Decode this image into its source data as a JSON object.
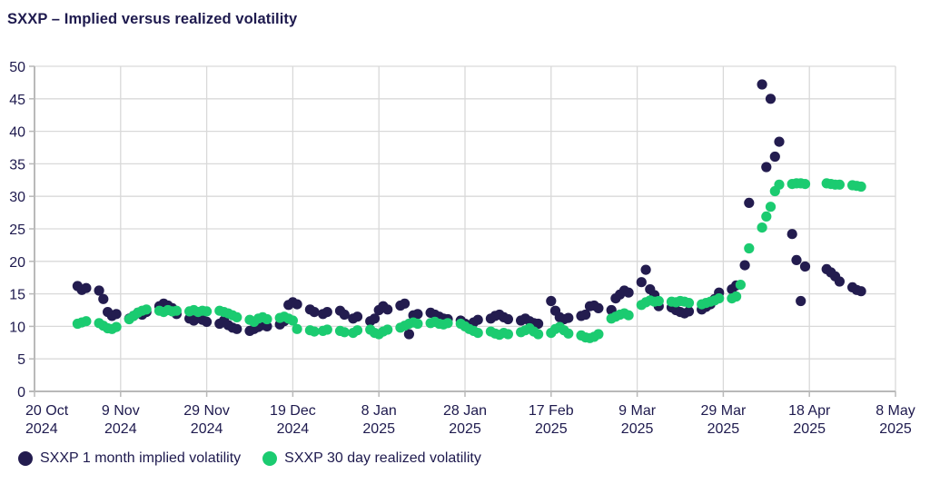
{
  "title": "SXXP – Implied versus realized volatility",
  "colors": {
    "implied": "#231c4f",
    "realized": "#1bcb70",
    "grid": "#d9d9d9",
    "axis": "#b9b9b9",
    "text": "#1e1a4e",
    "background": "#ffffff"
  },
  "legend": [
    {
      "label": "SXXP 1 month implied volatility",
      "series": "implied"
    },
    {
      "label": "SXXP 30 day realized volatility",
      "series": "realized"
    }
  ],
  "chart_data": {
    "type": "scatter",
    "title": "SXXP – Implied versus realized volatility",
    "grid": true,
    "legend_position": "bottom-left",
    "x_axis": {
      "start_date": "2024-10-20",
      "span_days": 200,
      "tick_interval_days": 20,
      "tick_labels": [
        [
          "20 Oct",
          "2024"
        ],
        [
          "9 Nov",
          "2024"
        ],
        [
          "29 Nov",
          "2024"
        ],
        [
          "19 Dec",
          "2024"
        ],
        [
          "8 Jan",
          "2025"
        ],
        [
          "28 Jan",
          "2025"
        ],
        [
          "17 Feb",
          "2025"
        ],
        [
          "9 Mar",
          "2025"
        ],
        [
          "29 Mar",
          "2025"
        ],
        [
          "18 Apr",
          "2025"
        ],
        [
          "8 May",
          "2025"
        ]
      ]
    },
    "y_axis": {
      "min": 0,
      "max": 50,
      "step": 5,
      "tick_labels": [
        "0",
        "5",
        "10",
        "15",
        "20",
        "25",
        "30",
        "35",
        "40",
        "45",
        "50"
      ]
    },
    "series": [
      {
        "name": "SXXP 1 month implied volatility",
        "color_key": "implied",
        "points": [
          [
            10,
            16.2
          ],
          [
            11,
            15.6
          ],
          [
            12,
            15.9
          ],
          [
            15,
            15.5
          ],
          [
            16,
            14.2
          ],
          [
            17,
            12.2
          ],
          [
            18,
            11.6
          ],
          [
            19,
            11.9
          ],
          [
            22,
            11.2
          ],
          [
            23,
            11.6
          ],
          [
            24,
            12.1
          ],
          [
            25,
            11.8
          ],
          [
            26,
            12.2
          ],
          [
            29,
            13.1
          ],
          [
            30,
            13.5
          ],
          [
            31,
            13.2
          ],
          [
            32,
            12.8
          ],
          [
            33,
            11.9
          ],
          [
            36,
            11.2
          ],
          [
            37,
            10.9
          ],
          [
            38,
            11.3
          ],
          [
            39,
            11.0
          ],
          [
            40,
            10.7
          ],
          [
            43,
            10.4
          ],
          [
            44,
            10.9
          ],
          [
            45,
            10.2
          ],
          [
            46,
            9.8
          ],
          [
            47,
            9.6
          ],
          [
            50,
            9.3
          ],
          [
            51,
            9.6
          ],
          [
            52,
            9.9
          ],
          [
            53,
            10.2
          ],
          [
            54,
            10.0
          ],
          [
            57,
            10.3
          ],
          [
            58,
            10.8
          ],
          [
            59,
            13.3
          ],
          [
            60,
            13.7
          ],
          [
            61,
            13.4
          ],
          [
            64,
            12.6
          ],
          [
            65,
            12.2
          ],
          [
            67,
            11.9
          ],
          [
            68,
            12.2
          ],
          [
            71,
            12.4
          ],
          [
            72,
            11.8
          ],
          [
            74,
            11.2
          ],
          [
            75,
            11.5
          ],
          [
            78,
            10.8
          ],
          [
            79,
            11.2
          ],
          [
            80,
            12.5
          ],
          [
            81,
            13.1
          ],
          [
            82,
            12.6
          ],
          [
            85,
            13.2
          ],
          [
            86,
            13.5
          ],
          [
            87,
            8.8
          ],
          [
            88,
            11.7
          ],
          [
            89,
            11.9
          ],
          [
            92,
            12.1
          ],
          [
            93,
            11.8
          ],
          [
            94,
            11.5
          ],
          [
            95,
            11.2
          ],
          [
            96,
            11.1
          ],
          [
            99,
            10.9
          ],
          [
            100,
            10.4
          ],
          [
            101,
            9.9
          ],
          [
            102,
            10.6
          ],
          [
            103,
            11.0
          ],
          [
            106,
            11.2
          ],
          [
            107,
            11.6
          ],
          [
            108,
            11.8
          ],
          [
            109,
            11.4
          ],
          [
            110,
            11.1
          ],
          [
            113,
            10.9
          ],
          [
            114,
            11.2
          ],
          [
            115,
            10.8
          ],
          [
            116,
            10.5
          ],
          [
            117,
            10.4
          ],
          [
            120,
            13.9
          ],
          [
            121,
            12.4
          ],
          [
            122,
            11.4
          ],
          [
            123,
            11.1
          ],
          [
            124,
            11.3
          ],
          [
            127,
            11.6
          ],
          [
            128,
            11.8
          ],
          [
            129,
            13.1
          ],
          [
            130,
            13.2
          ],
          [
            131,
            12.8
          ],
          [
            134,
            12.5
          ],
          [
            135,
            14.3
          ],
          [
            136,
            14.9
          ],
          [
            137,
            15.5
          ],
          [
            138,
            15.2
          ],
          [
            141,
            16.8
          ],
          [
            142,
            18.7
          ],
          [
            143,
            15.7
          ],
          [
            144,
            14.8
          ],
          [
            145,
            13.1
          ],
          [
            148,
            12.9
          ],
          [
            149,
            12.5
          ],
          [
            150,
            12.2
          ],
          [
            151,
            12.0
          ],
          [
            152,
            12.3
          ],
          [
            155,
            12.6
          ],
          [
            156,
            13.0
          ],
          [
            157,
            13.4
          ],
          [
            158,
            14.2
          ],
          [
            159,
            15.2
          ],
          [
            162,
            15.7
          ],
          [
            163,
            16.3
          ],
          [
            165,
            19.4
          ],
          [
            166,
            29.0
          ],
          [
            169,
            47.2
          ],
          [
            170,
            34.5
          ],
          [
            171,
            45.0
          ],
          [
            172,
            36.1
          ],
          [
            173,
            38.4
          ],
          [
            176,
            24.2
          ],
          [
            177,
            20.2
          ],
          [
            178,
            13.9
          ],
          [
            179,
            19.2
          ],
          [
            184,
            18.8
          ],
          [
            185,
            18.3
          ],
          [
            186,
            17.7
          ],
          [
            187,
            16.9
          ],
          [
            190,
            16.0
          ],
          [
            191,
            15.6
          ],
          [
            192,
            15.4
          ]
        ]
      },
      {
        "name": "SXXP 30 day realized volatility",
        "color_key": "realized",
        "points": [
          [
            10,
            10.4
          ],
          [
            11,
            10.6
          ],
          [
            12,
            10.8
          ],
          [
            15,
            10.5
          ],
          [
            16,
            10.1
          ],
          [
            17,
            9.7
          ],
          [
            18,
            9.6
          ],
          [
            19,
            9.9
          ],
          [
            22,
            11.1
          ],
          [
            23,
            11.6
          ],
          [
            24,
            12.1
          ],
          [
            25,
            12.4
          ],
          [
            26,
            12.6
          ],
          [
            29,
            12.4
          ],
          [
            30,
            12.2
          ],
          [
            31,
            12.5
          ],
          [
            32,
            12.3
          ],
          [
            33,
            12.4
          ],
          [
            36,
            12.3
          ],
          [
            37,
            12.5
          ],
          [
            38,
            12.2
          ],
          [
            39,
            12.4
          ],
          [
            40,
            12.3
          ],
          [
            43,
            12.4
          ],
          [
            44,
            12.2
          ],
          [
            45,
            12.0
          ],
          [
            46,
            11.7
          ],
          [
            47,
            11.4
          ],
          [
            50,
            11.0
          ],
          [
            51,
            10.7
          ],
          [
            52,
            11.2
          ],
          [
            53,
            11.4
          ],
          [
            54,
            11.1
          ],
          [
            57,
            11.3
          ],
          [
            58,
            11.5
          ],
          [
            59,
            11.2
          ],
          [
            60,
            10.9
          ],
          [
            61,
            9.6
          ],
          [
            64,
            9.4
          ],
          [
            65,
            9.2
          ],
          [
            67,
            9.3
          ],
          [
            68,
            9.5
          ],
          [
            71,
            9.3
          ],
          [
            72,
            9.1
          ],
          [
            74,
            9.0
          ],
          [
            75,
            9.4
          ],
          [
            78,
            9.5
          ],
          [
            79,
            9.0
          ],
          [
            80,
            8.8
          ],
          [
            81,
            9.2
          ],
          [
            82,
            9.5
          ],
          [
            85,
            9.8
          ],
          [
            86,
            10.1
          ],
          [
            87,
            10.4
          ],
          [
            88,
            10.6
          ],
          [
            89,
            10.4
          ],
          [
            92,
            10.5
          ],
          [
            93,
            10.7
          ],
          [
            94,
            10.4
          ],
          [
            95,
            10.3
          ],
          [
            96,
            10.5
          ],
          [
            99,
            10.4
          ],
          [
            100,
            10.0
          ],
          [
            101,
            9.6
          ],
          [
            102,
            9.3
          ],
          [
            103,
            9.0
          ],
          [
            106,
            9.2
          ],
          [
            107,
            8.9
          ],
          [
            108,
            8.7
          ],
          [
            109,
            9.0
          ],
          [
            110,
            8.8
          ],
          [
            113,
            9.1
          ],
          [
            114,
            9.4
          ],
          [
            115,
            9.7
          ],
          [
            116,
            9.2
          ],
          [
            117,
            8.8
          ],
          [
            120,
            9.0
          ],
          [
            121,
            9.6
          ],
          [
            122,
            9.9
          ],
          [
            123,
            9.4
          ],
          [
            124,
            8.9
          ],
          [
            127,
            8.6
          ],
          [
            128,
            8.3
          ],
          [
            129,
            8.2
          ],
          [
            130,
            8.4
          ],
          [
            131,
            8.8
          ],
          [
            134,
            11.2
          ],
          [
            135,
            11.5
          ],
          [
            136,
            11.8
          ],
          [
            137,
            12.0
          ],
          [
            138,
            11.7
          ],
          [
            141,
            13.3
          ],
          [
            142,
            13.7
          ],
          [
            143,
            14.0
          ],
          [
            144,
            13.8
          ],
          [
            145,
            13.9
          ],
          [
            148,
            13.8
          ],
          [
            149,
            13.7
          ],
          [
            150,
            13.9
          ],
          [
            151,
            13.8
          ],
          [
            152,
            13.6
          ],
          [
            155,
            13.4
          ],
          [
            156,
            13.6
          ],
          [
            157,
            13.8
          ],
          [
            158,
            14.0
          ],
          [
            159,
            14.3
          ],
          [
            162,
            14.3
          ],
          [
            163,
            14.6
          ],
          [
            164,
            16.4
          ],
          [
            166,
            22.0
          ],
          [
            169,
            25.2
          ],
          [
            170,
            26.9
          ],
          [
            171,
            28.4
          ],
          [
            172,
            30.8
          ],
          [
            173,
            31.8
          ],
          [
            176,
            31.9
          ],
          [
            177,
            32.0
          ],
          [
            178,
            32.0
          ],
          [
            179,
            31.9
          ],
          [
            184,
            32.0
          ],
          [
            185,
            31.9
          ],
          [
            186,
            31.8
          ],
          [
            187,
            31.8
          ],
          [
            190,
            31.7
          ],
          [
            191,
            31.6
          ],
          [
            192,
            31.5
          ]
        ]
      }
    ]
  }
}
